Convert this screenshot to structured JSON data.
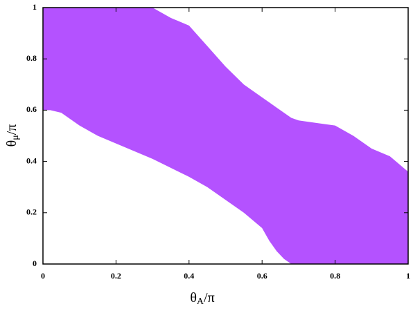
{
  "chart_data": {
    "type": "band",
    "xlabel": {
      "base": "θ",
      "sub": "A",
      "rest": "/π"
    },
    "ylabel": {
      "base": "θ",
      "sub": "μ",
      "rest": "/π"
    },
    "x": [
      0,
      0.02,
      0.05,
      0.1,
      0.15,
      0.2,
      0.25,
      0.3,
      0.35,
      0.4,
      0.45,
      0.5,
      0.55,
      0.6,
      0.62,
      0.64,
      0.66,
      0.68,
      0.7,
      0.75,
      0.8,
      0.85,
      0.9,
      0.95,
      1
    ],
    "upper": [
      1,
      1,
      1,
      1,
      1,
      1,
      1,
      1,
      0.96,
      0.93,
      0.85,
      0.77,
      0.7,
      0.65,
      0.63,
      0.61,
      0.59,
      0.57,
      0.56,
      0.55,
      0.54,
      0.5,
      0.45,
      0.42,
      0.36
    ],
    "lower": [
      0.6,
      0.6,
      0.59,
      0.54,
      0.5,
      0.47,
      0.44,
      0.41,
      0.375,
      0.34,
      0.3,
      0.25,
      0.2,
      0.14,
      0.09,
      0.05,
      0.02,
      0,
      0,
      0,
      0,
      0,
      0,
      0,
      0
    ],
    "color": "#b452ff",
    "xlim": [
      0,
      1
    ],
    "ylim": [
      0,
      1
    ],
    "xticks": [
      0,
      0.2,
      0.4,
      0.6,
      0.8,
      1
    ],
    "yticks": [
      0,
      0.2,
      0.4,
      0.6,
      0.8,
      1
    ]
  }
}
